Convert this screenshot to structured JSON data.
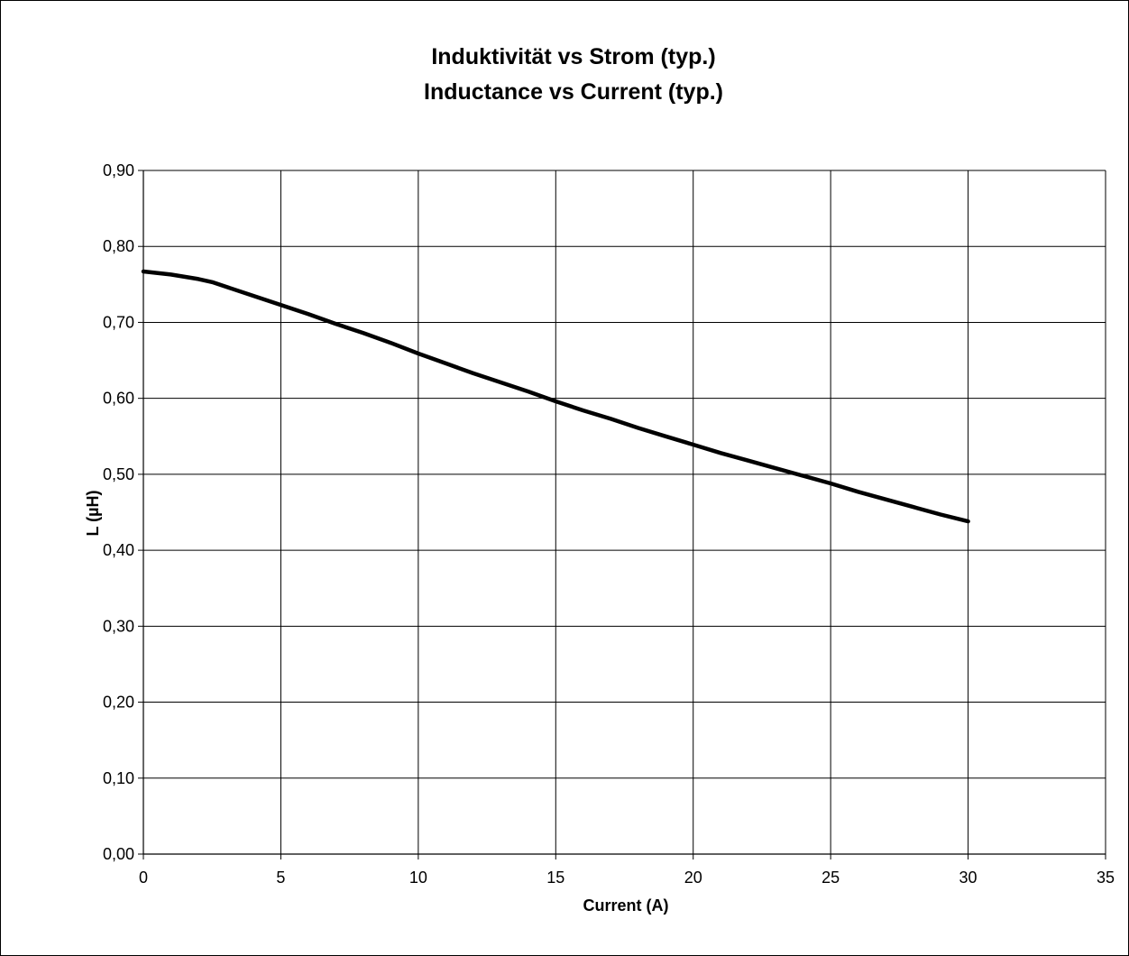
{
  "chart_data": {
    "type": "line",
    "title": [
      "Induktivität vs Strom (typ.)",
      "Inductance vs Current (typ.)"
    ],
    "xlabel": "Current (A)",
    "ylabel": "L (µH)",
    "xlim": [
      0,
      35
    ],
    "ylim": [
      0,
      0.9
    ],
    "x_ticks": [
      "0",
      "5",
      "10",
      "15",
      "20",
      "25",
      "30",
      "35"
    ],
    "y_ticks": [
      "0,00",
      "0,10",
      "0,20",
      "0,30",
      "0,40",
      "0,50",
      "0,60",
      "0,70",
      "0,80",
      "0,90"
    ],
    "grid": true,
    "legend": "none",
    "colors": {
      "line": "#000000",
      "grid": "#000000"
    },
    "series": [
      {
        "x": [
          0,
          1,
          2,
          2.5,
          3,
          4,
          5,
          6,
          7,
          8,
          9,
          10,
          11,
          12,
          13,
          14,
          15,
          16,
          17,
          18,
          19,
          20,
          21,
          22,
          23,
          24,
          25,
          26,
          27,
          28,
          29,
          30
        ],
        "values": [
          0.767,
          0.763,
          0.757,
          0.753,
          0.747,
          0.735,
          0.723,
          0.711,
          0.698,
          0.686,
          0.673,
          0.659,
          0.646,
          0.633,
          0.621,
          0.609,
          0.596,
          0.584,
          0.573,
          0.561,
          0.55,
          0.539,
          0.528,
          0.518,
          0.508,
          0.498,
          0.488,
          0.477,
          0.467,
          0.457,
          0.447,
          0.438
        ]
      }
    ]
  }
}
